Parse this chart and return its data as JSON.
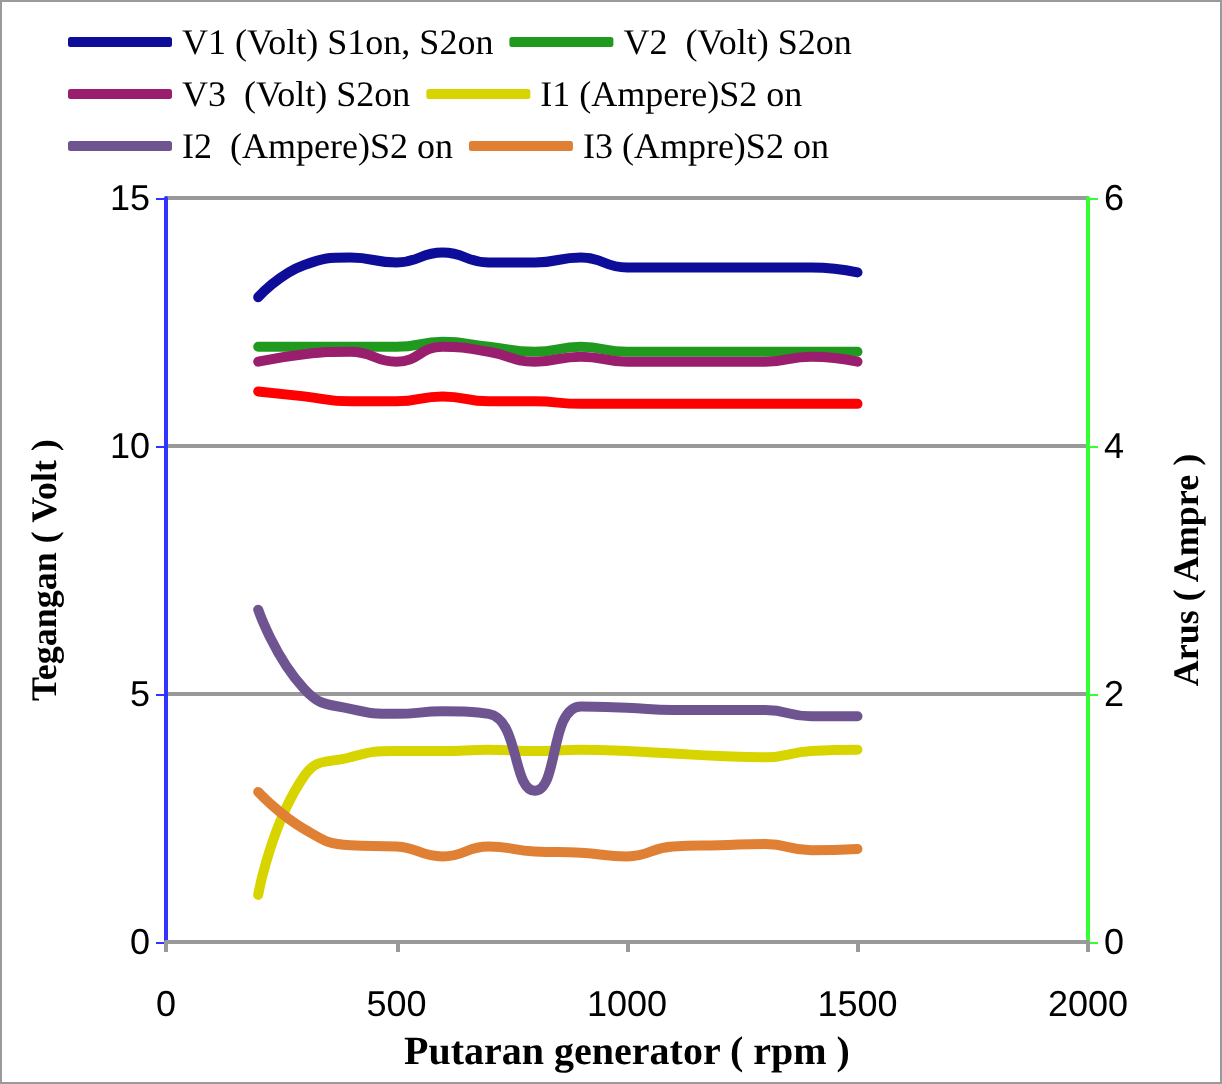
{
  "chart_data": {
    "type": "line",
    "xlabel": "Putaran generator ( rpm )",
    "ylabel": "Tegangan ( Volt )",
    "y2label": "Arus ( Ampre )",
    "x": [
      200,
      300,
      400,
      500,
      600,
      700,
      800,
      900,
      1000,
      1100,
      1200,
      1300,
      1400,
      1500
    ],
    "series": [
      {
        "name": "V1 (Volt) S1on, S2on",
        "color": "#0d0d9a",
        "values": [
          13.0,
          13.65,
          13.8,
          13.7,
          13.9,
          13.7,
          13.7,
          13.8,
          13.6,
          13.6,
          13.6,
          13.6,
          13.6,
          13.5
        ]
      },
      {
        "name": "V2  (Volt) S2on",
        "color": "#1f9a1f",
        "values": [
          12.0,
          12.0,
          12.0,
          12.0,
          12.1,
          12.0,
          11.9,
          12.0,
          11.9,
          11.9,
          11.9,
          11.9,
          11.9,
          11.9
        ]
      },
      {
        "name": "V3  (Volt) S2on",
        "color": "#9a1e6e",
        "values": [
          11.7,
          11.85,
          11.9,
          11.7,
          12.0,
          11.9,
          11.7,
          11.8,
          11.7,
          11.7,
          11.7,
          11.7,
          11.8,
          11.7
        ]
      },
      {
        "name": "I1 (Ampere)S2 on",
        "color": "#d8d400",
        "axis": "y2",
        "values": [
          0.38,
          1.34,
          1.49,
          1.54,
          1.54,
          1.55,
          1.54,
          1.55,
          1.54,
          1.52,
          1.5,
          1.49,
          1.54,
          1.55
        ]
      },
      {
        "name": "I2  (Ampere)S2 on",
        "color": "#6e5592",
        "axis": "y2",
        "values": [
          2.68,
          2.04,
          1.88,
          1.84,
          1.86,
          1.84,
          1.22,
          1.9,
          1.89,
          1.87,
          1.87,
          1.87,
          1.82,
          1.82
        ]
      },
      {
        "name": "I3 (Ampre)S2 on",
        "color": "#e08035",
        "axis": "y2",
        "values": [
          1.21,
          0.91,
          0.78,
          0.77,
          0.69,
          0.77,
          0.73,
          0.72,
          0.69,
          0.77,
          0.78,
          0.79,
          0.74,
          0.75
        ]
      },
      {
        "color": "#ff0000",
        "values": [
          11.1,
          11.0,
          10.9,
          10.9,
          11.0,
          10.9,
          10.9,
          10.85,
          10.85,
          10.85,
          10.85,
          10.85,
          10.85,
          10.85
        ]
      }
    ],
    "xlim": [
      0,
      2000
    ],
    "xticks": [
      0,
      500,
      1000,
      1500,
      2000
    ],
    "ylim": [
      0,
      15
    ],
    "yticks": [
      0,
      5,
      10,
      15
    ],
    "y2lim": [
      0,
      6
    ],
    "y2ticks": [
      0,
      2,
      4,
      6
    ],
    "grid": "y",
    "legend": "top",
    "marker": "none",
    "line_style": "solid"
  }
}
